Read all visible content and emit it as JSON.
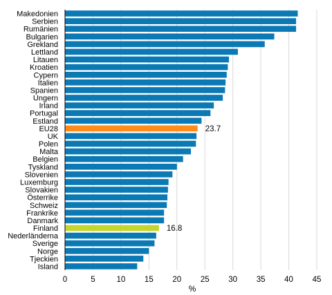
{
  "chart_data": {
    "type": "bar",
    "orientation": "horizontal",
    "categories": [
      "Makedonien",
      "Serbien",
      "Rumänien",
      "Bulgarien",
      "Grekland",
      "Lettland",
      "Litauen",
      "Kroatien",
      "Cypern",
      "Italien",
      "Spanien",
      "Ungern",
      "Irland",
      "Portugal",
      "Estland",
      "EU28",
      "UK",
      "Polen",
      "Malta",
      "Belgien",
      "Tyskland",
      "Slovenien",
      "Luxemburg",
      "Slovakien",
      "Österrike",
      "Schweiz",
      "Frankrike",
      "Danmark",
      "Finland",
      "Nederländerna",
      "Sverige",
      "Norge",
      "Tjeckien",
      "Island"
    ],
    "values": [
      41.6,
      41.3,
      41.3,
      37.4,
      35.7,
      30.9,
      29.3,
      29.1,
      28.9,
      28.7,
      28.6,
      28.2,
      26.6,
      26.0,
      24.4,
      23.7,
      23.5,
      23.4,
      22.5,
      21.1,
      20.0,
      19.2,
      18.5,
      18.4,
      18.3,
      18.2,
      17.7,
      17.7,
      16.8,
      16.3,
      16.0,
      15.0,
      14.0,
      12.9
    ],
    "highlights": {
      "EU28": "#ff8c1a",
      "Finland": "#c2d62e"
    },
    "data_labels": {
      "EU28": "23.7",
      "Finland": "16.8"
    },
    "bar_color": "#0b79b4",
    "xlim": [
      0,
      45
    ],
    "xticks": [
      "0",
      "5",
      "10",
      "15",
      "20",
      "25",
      "30",
      "35",
      "40",
      "45"
    ],
    "xlabel": "%",
    "ylabel": "",
    "title": "",
    "grid": "vertical"
  }
}
